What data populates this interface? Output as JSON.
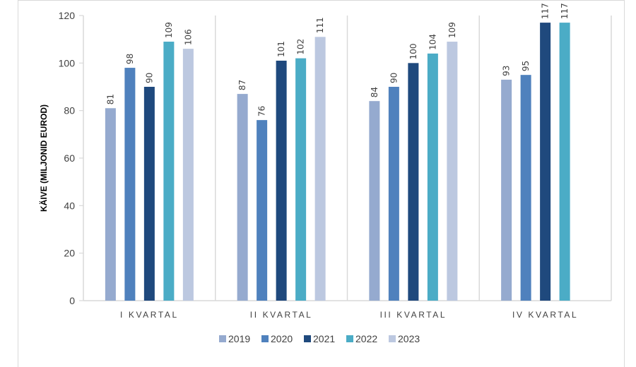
{
  "chart_data": {
    "type": "bar",
    "title": "",
    "xlabel": "",
    "ylabel": "KÄIVE (MILJONID EUROD)",
    "ylim": [
      0,
      120
    ],
    "yticks": [
      0,
      20,
      40,
      60,
      80,
      100,
      120
    ],
    "grid": "vertical category separators",
    "legend_position": "bottom",
    "categories": [
      "I KVARTAL",
      "II KVARTAL",
      "III KVARTAL",
      "IV KVARTAL"
    ],
    "series": [
      {
        "name": "2019",
        "color": "#95AACF",
        "values": [
          81,
          87,
          84,
          93
        ]
      },
      {
        "name": "2020",
        "color": "#4F81BD",
        "values": [
          98,
          76,
          90,
          95
        ]
      },
      {
        "name": "2021",
        "color": "#1F497D",
        "values": [
          90,
          101,
          100,
          117
        ]
      },
      {
        "name": "2022",
        "color": "#4BACC6",
        "values": [
          109,
          102,
          104,
          117
        ]
      },
      {
        "name": "2023",
        "color": "#BCC8E0",
        "values": [
          106,
          111,
          109,
          null
        ]
      }
    ]
  }
}
